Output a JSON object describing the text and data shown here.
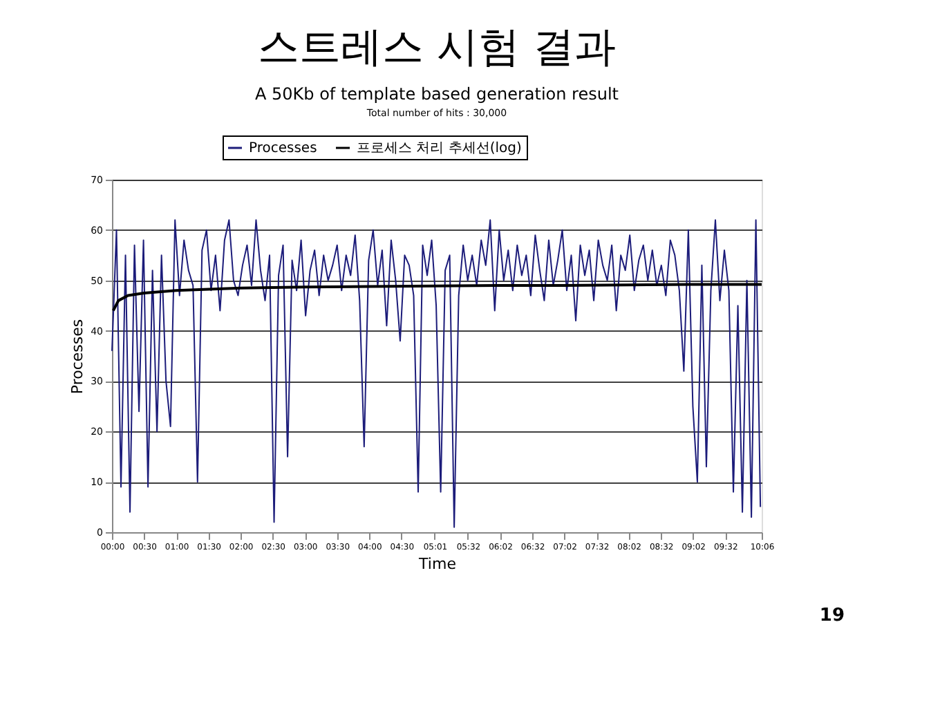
{
  "chart_data": {
    "type": "line",
    "title": "A 50Kb of template based generation result",
    "subtitle": "Total number of hits : 30,000",
    "annotations": [
      "스트레스 시험 결과",
      "19"
    ],
    "xlabel": "Time",
    "ylabel": "Processes",
    "xlim": [
      0,
      10.1
    ],
    "xticks": [
      {
        "value": 0,
        "label": "00:00"
      },
      {
        "value": 0.5,
        "label": "00:30"
      },
      {
        "value": 1,
        "label": "01:00"
      },
      {
        "value": 1.5,
        "label": "01:30"
      },
      {
        "value": 2,
        "label": "02:00"
      },
      {
        "value": 2.5,
        "label": "02:30"
      },
      {
        "value": 3,
        "label": "03:00"
      },
      {
        "value": 3.5,
        "label": "03:30"
      },
      {
        "value": 4,
        "label": "04:00"
      },
      {
        "value": 4.5,
        "label": "04:30"
      },
      {
        "value": 5.017,
        "label": "05:01"
      },
      {
        "value": 5.533,
        "label": "05:32"
      },
      {
        "value": 6.033,
        "label": "06:02"
      },
      {
        "value": 6.533,
        "label": "06:32"
      },
      {
        "value": 7.033,
        "label": "07:02"
      },
      {
        "value": 7.533,
        "label": "07:32"
      },
      {
        "value": 8.033,
        "label": "08:02"
      },
      {
        "value": 8.533,
        "label": "08:32"
      },
      {
        "value": 9.033,
        "label": "09:02"
      },
      {
        "value": 9.533,
        "label": "09:32"
      },
      {
        "value": 10.1,
        "label": "10:06"
      }
    ],
    "ylim": [
      0,
      70
    ],
    "yticks": [
      0,
      10,
      20,
      30,
      40,
      50,
      60,
      70
    ],
    "grid": "y",
    "legend": "top",
    "marker": "none",
    "line_style": "solid",
    "series": [
      {
        "name": "Processes",
        "color": "#1c1c7a",
        "x": [
          0,
          0.07,
          0.14,
          0.21,
          0.28,
          0.35,
          0.42,
          0.49,
          0.56,
          0.63,
          0.7,
          0.77,
          0.84,
          0.91,
          0.98,
          1.05,
          1.12,
          1.19,
          1.26,
          1.33,
          1.4,
          1.47,
          1.54,
          1.61,
          1.68,
          1.75,
          1.82,
          1.89,
          1.96,
          2.03,
          2.1,
          2.17,
          2.24,
          2.31,
          2.38,
          2.45,
          2.52,
          2.59,
          2.66,
          2.73,
          2.8,
          2.87,
          2.94,
          3.01,
          3.08,
          3.15,
          3.22,
          3.29,
          3.36,
          3.43,
          3.5,
          3.57,
          3.64,
          3.71,
          3.78,
          3.85,
          3.92,
          3.99,
          4.06,
          4.13,
          4.2,
          4.27,
          4.34,
          4.41,
          4.48,
          4.55,
          4.62,
          4.69,
          4.76,
          4.83,
          4.9,
          4.97,
          5.04,
          5.11,
          5.18,
          5.25,
          5.32,
          5.39,
          5.46,
          5.53,
          5.6,
          5.67,
          5.74,
          5.81,
          5.88,
          5.95,
          6.02,
          6.09,
          6.16,
          6.23,
          6.3,
          6.37,
          6.44,
          6.51,
          6.58,
          6.65,
          6.72,
          6.79,
          6.86,
          6.93,
          7,
          7.07,
          7.14,
          7.21,
          7.28,
          7.35,
          7.42,
          7.49,
          7.56,
          7.63,
          7.7,
          7.77,
          7.84,
          7.91,
          7.98,
          8.05,
          8.12,
          8.19,
          8.26,
          8.33,
          8.4,
          8.47,
          8.54,
          8.61,
          8.68,
          8.75,
          8.82,
          8.89,
          8.96,
          9.03,
          9.1,
          9.17,
          9.24,
          9.31,
          9.38,
          9.45,
          9.52,
          9.59,
          9.66,
          9.73,
          9.8,
          9.87,
          9.94,
          10.01,
          10.08
        ],
        "values": [
          36,
          60,
          9,
          55,
          4,
          57,
          24,
          58,
          9,
          52,
          20,
          55,
          30,
          21,
          62,
          47,
          58,
          52,
          49,
          10,
          56,
          60,
          48,
          55,
          44,
          58,
          62,
          50,
          47,
          53,
          57,
          49,
          62,
          52,
          46,
          55,
          2,
          51,
          57,
          15,
          54,
          48,
          58,
          43,
          52,
          56,
          47,
          55,
          50,
          53,
          57,
          48,
          55,
          51,
          59,
          46,
          17,
          54,
          60,
          49,
          56,
          41,
          58,
          50,
          38,
          55,
          53,
          47,
          8,
          57,
          51,
          58,
          45,
          8,
          52,
          55,
          1,
          47,
          57,
          50,
          55,
          49,
          58,
          53,
          62,
          44,
          60,
          50,
          56,
          48,
          57,
          51,
          55,
          47,
          59,
          52,
          46,
          58,
          49,
          54,
          60,
          48,
          55,
          42,
          57,
          51,
          56,
          46,
          58,
          53,
          50,
          57,
          44,
          55,
          52,
          59,
          48,
          54,
          57,
          50,
          56,
          49,
          53,
          47,
          58,
          55,
          48,
          32,
          60,
          25,
          10,
          53,
          13,
          48,
          62,
          46,
          56,
          48,
          8,
          45,
          4,
          50,
          3,
          62,
          5
        ]
      },
      {
        "name": "프로세스 처리 추세선(log)",
        "color": "#000000",
        "x": [
          0.02,
          0.1,
          0.25,
          0.5,
          1,
          2,
          3,
          4,
          5,
          6,
          7,
          8,
          9,
          10.1
        ],
        "values": [
          44,
          46,
          47,
          47.5,
          48,
          48.5,
          48.7,
          48.8,
          48.9,
          49,
          49,
          49.1,
          49.2,
          49.2
        ]
      }
    ]
  }
}
